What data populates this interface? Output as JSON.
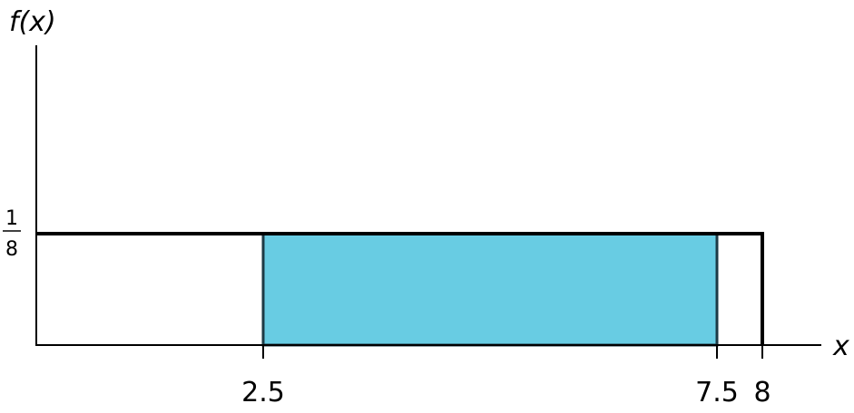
{
  "chart_data": {
    "type": "area",
    "title": "",
    "xlabel": "x",
    "ylabel": "f(x)",
    "xlim": [
      0,
      8.6
    ],
    "ylim": [
      0,
      0.125
    ],
    "distribution": {
      "support": [
        0,
        8
      ],
      "density": 0.125,
      "density_label_numerator": "1",
      "density_label_denominator": "8"
    },
    "shaded_region": {
      "x_start": 2.5,
      "x_end": 7.5,
      "color": "#68cce3"
    },
    "x_ticks": [
      {
        "value": 2.5,
        "label": "2.5"
      },
      {
        "value": 7.5,
        "label": "7.5"
      },
      {
        "value": 8,
        "label": "8"
      }
    ],
    "grid": false
  }
}
